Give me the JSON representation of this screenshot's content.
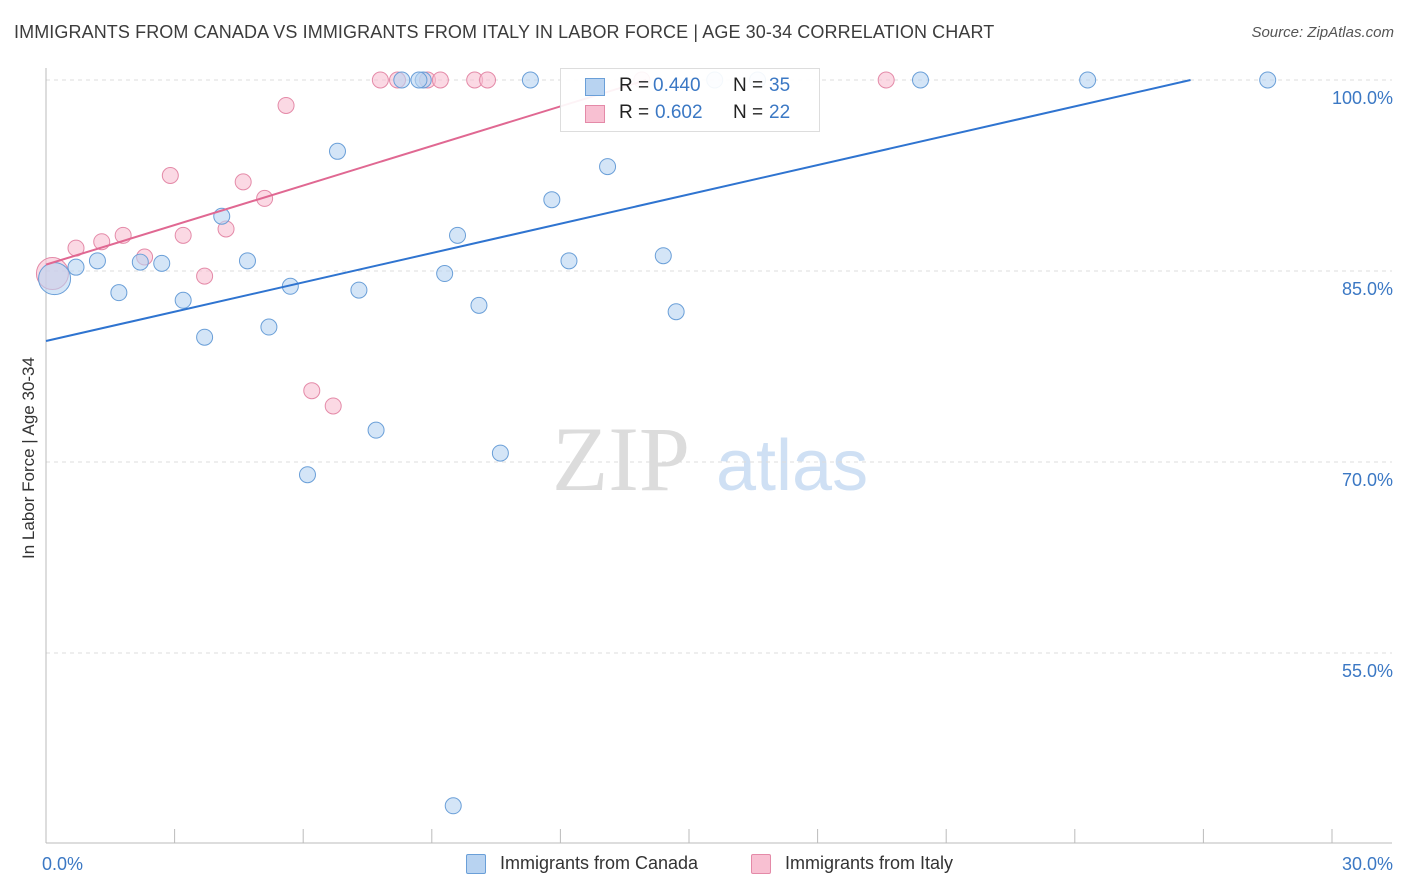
{
  "title": "IMMIGRANTS FROM CANADA VS IMMIGRANTS FROM ITALY IN LABOR FORCE | AGE 30-34 CORRELATION CHART",
  "source": "Source: ZipAtlas.com",
  "watermark": {
    "zip": "ZIP",
    "atlas": "atlas"
  },
  "legend": {
    "canada": {
      "r_label": "R =",
      "r_value": "0.440",
      "n_label": "N =",
      "n_value": "35"
    },
    "italy": {
      "r_label": "R =",
      "r_value": "0.602",
      "n_label": "N =",
      "n_value": "22"
    }
  },
  "bottom_legend": {
    "canada": "Immigrants from Canada",
    "italy": "Immigrants from Italy"
  },
  "colors": {
    "canada_fill": "#b8d3f1",
    "canada_stroke": "#6a9fd8",
    "canada_line": "#2f74d0",
    "italy_fill": "#f8c0d2",
    "italy_stroke": "#e48aa8",
    "italy_line": "#e06892",
    "tick_label": "#3b78c4",
    "grid": "#dddddd"
  },
  "chart_data": {
    "type": "scatter",
    "title": "IMMIGRANTS FROM CANADA VS IMMIGRANTS FROM ITALY IN LABOR FORCE | AGE 30-34 CORRELATION CHART",
    "xlabel": "",
    "ylabel": "In Labor Force | Age 30-34",
    "xlim": [
      0,
      30
    ],
    "ylim": [
      40,
      102.5
    ],
    "x_tick_labels": [
      {
        "value": 0,
        "label": "0.0%"
      },
      {
        "value": 30,
        "label": "30.0%"
      }
    ],
    "x_minor_ticks": [
      3,
      6,
      9,
      12,
      15,
      18,
      21,
      24,
      27,
      30
    ],
    "y_ticks": [
      {
        "value": 100,
        "label": "100.0%"
      },
      {
        "value": 85,
        "label": "85.0%"
      },
      {
        "value": 70,
        "label": "70.0%"
      },
      {
        "value": 55,
        "label": "55.0%"
      }
    ],
    "series": [
      {
        "name": "Immigrants from Canada",
        "r": 0.44,
        "n": 35,
        "trend": {
          "x": [
            0,
            26.7
          ],
          "y": [
            79.5,
            100.0
          ]
        },
        "points": [
          {
            "x": 0.2,
            "y": 84.4,
            "big": true
          },
          {
            "x": 0.7,
            "y": 85.3
          },
          {
            "x": 1.2,
            "y": 85.8
          },
          {
            "x": 1.7,
            "y": 83.3
          },
          {
            "x": 2.2,
            "y": 85.7
          },
          {
            "x": 2.7,
            "y": 85.6
          },
          {
            "x": 3.2,
            "y": 82.7
          },
          {
            "x": 3.7,
            "y": 79.8
          },
          {
            "x": 4.1,
            "y": 89.3
          },
          {
            "x": 4.7,
            "y": 85.8
          },
          {
            "x": 5.2,
            "y": 80.6
          },
          {
            "x": 5.7,
            "y": 83.8
          },
          {
            "x": 6.1,
            "y": 69.0
          },
          {
            "x": 6.8,
            "y": 94.4
          },
          {
            "x": 7.3,
            "y": 83.5
          },
          {
            "x": 7.7,
            "y": 72.5
          },
          {
            "x": 8.3,
            "y": 100.0
          },
          {
            "x": 8.8,
            "y": 100.0
          },
          {
            "x": 8.7,
            "y": 100.0
          },
          {
            "x": 9.3,
            "y": 84.8
          },
          {
            "x": 9.5,
            "y": 43.0
          },
          {
            "x": 9.6,
            "y": 87.8
          },
          {
            "x": 10.1,
            "y": 82.3
          },
          {
            "x": 10.6,
            "y": 70.7
          },
          {
            "x": 11.3,
            "y": 100.0
          },
          {
            "x": 11.8,
            "y": 90.6
          },
          {
            "x": 12.2,
            "y": 85.8
          },
          {
            "x": 13.1,
            "y": 93.2
          },
          {
            "x": 14.4,
            "y": 86.2
          },
          {
            "x": 14.7,
            "y": 81.8
          },
          {
            "x": 15.6,
            "y": 100.0
          },
          {
            "x": 16.6,
            "y": 100.0
          },
          {
            "x": 20.4,
            "y": 100.0
          },
          {
            "x": 24.3,
            "y": 100.0
          },
          {
            "x": 28.5,
            "y": 100.0
          }
        ]
      },
      {
        "name": "Immigrants from Italy",
        "r": 0.602,
        "n": 22,
        "trend": {
          "x": [
            0,
            14.0
          ],
          "y": [
            85.5,
            100.0
          ]
        },
        "points": [
          {
            "x": 0.15,
            "y": 84.8,
            "big": true
          },
          {
            "x": 0.7,
            "y": 86.8
          },
          {
            "x": 1.3,
            "y": 87.3
          },
          {
            "x": 1.8,
            "y": 87.8
          },
          {
            "x": 2.3,
            "y": 86.1
          },
          {
            "x": 2.9,
            "y": 92.5
          },
          {
            "x": 3.2,
            "y": 87.8
          },
          {
            "x": 3.7,
            "y": 84.6
          },
          {
            "x": 4.2,
            "y": 88.3
          },
          {
            "x": 4.6,
            "y": 92.0
          },
          {
            "x": 5.1,
            "y": 90.7
          },
          {
            "x": 5.6,
            "y": 98.0
          },
          {
            "x": 6.2,
            "y": 75.6
          },
          {
            "x": 6.7,
            "y": 74.4
          },
          {
            "x": 7.8,
            "y": 100.0
          },
          {
            "x": 8.2,
            "y": 100.0
          },
          {
            "x": 8.9,
            "y": 100.0
          },
          {
            "x": 9.2,
            "y": 100.0
          },
          {
            "x": 10.0,
            "y": 100.0
          },
          {
            "x": 10.3,
            "y": 100.0
          },
          {
            "x": 13.9,
            "y": 100.0
          },
          {
            "x": 19.6,
            "y": 100.0
          }
        ]
      }
    ]
  }
}
